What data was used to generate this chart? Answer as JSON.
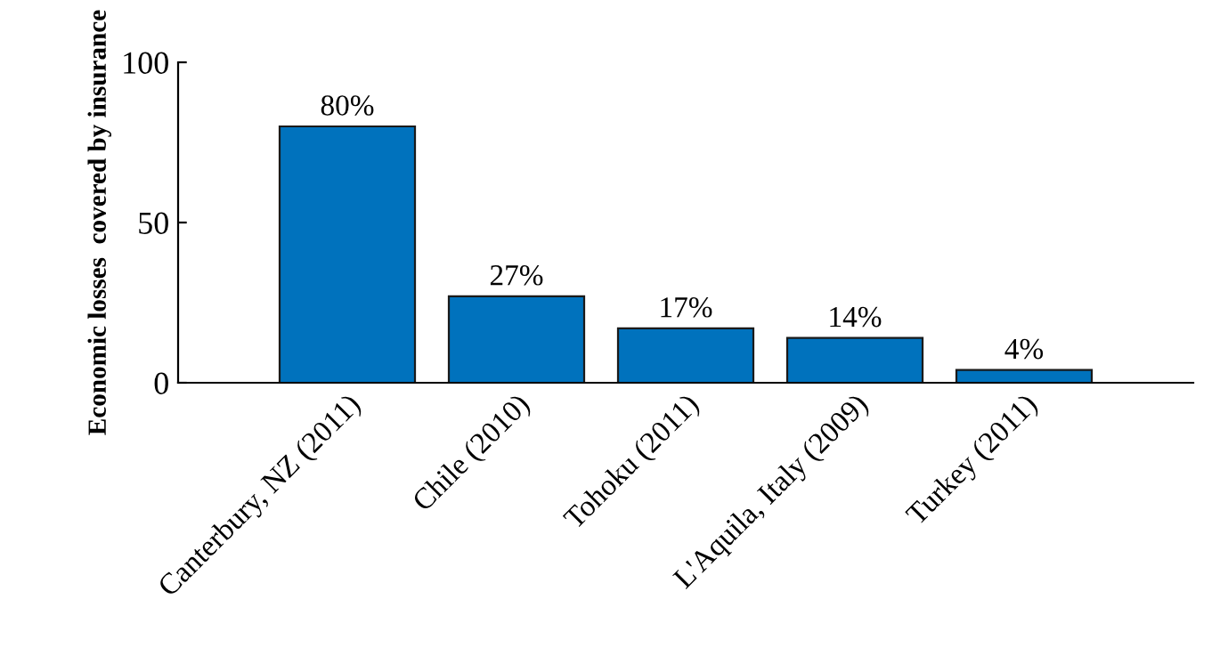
{
  "chart_data": {
    "type": "bar",
    "ylabel": "Economic losses  covered by insurance",
    "categories": [
      "Canterbury, NZ (2011)",
      "Chile (2010)",
      "Tohoku (2011)",
      "L'Aquila, Italy (2009)",
      "Turkey (2011)"
    ],
    "values": [
      80,
      27,
      17,
      14,
      4
    ],
    "value_labels": [
      "80%",
      "27%",
      "17%",
      "14%",
      "4%"
    ],
    "color": "#0072bd",
    "ylim": [
      0,
      100
    ],
    "yticks": [
      0,
      50,
      100
    ],
    "grid": false,
    "legend": false
  }
}
